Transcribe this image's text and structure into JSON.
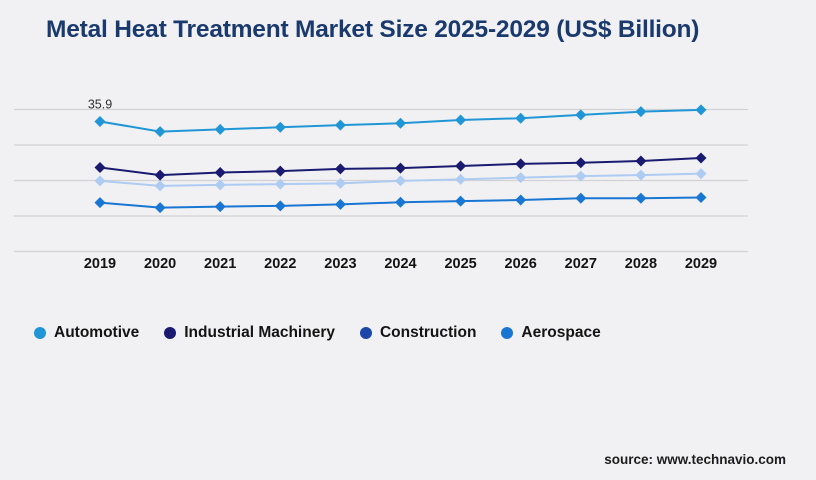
{
  "title": "Metal Heat Treatment Market Size 2025-2029 (US$ Billion)",
  "source": "source: www.technavio.com",
  "colors": {
    "background": "#f1f1f3",
    "title_text": "#1a3a6e",
    "gridline": "#d2d2d6",
    "axis_label_text": "#131313",
    "legend_text": "#141414",
    "annotation_text": "#2e2e2e",
    "source_text": "#1c1c1c"
  },
  "chart_data": {
    "type": "line",
    "title": "Metal Heat Treatment Market Size 2025-2029 (US$ Billion)",
    "categories": [
      "2019",
      "2020",
      "2021",
      "2022",
      "2023",
      "2024",
      "2025",
      "2026",
      "2027",
      "2028",
      "2029"
    ],
    "series": [
      {
        "name": "Automotive",
        "color": "#2196d6",
        "values": [
          35.9,
          33.1,
          33.7,
          34.3,
          34.9,
          35.4,
          36.3,
          36.8,
          37.7,
          38.6,
          39.1
        ]
      },
      {
        "name": "Industrial Machinery",
        "color": "#1a1a70",
        "values": [
          23.2,
          21.1,
          21.8,
          22.2,
          22.8,
          23.0,
          23.6,
          24.2,
          24.5,
          25.0,
          25.8
        ]
      },
      {
        "name": "Construction",
        "color": "#1c46a8",
        "line_color": "#aecbf2",
        "values": [
          19.5,
          18.1,
          18.4,
          18.6,
          18.8,
          19.5,
          19.9,
          20.4,
          20.8,
          21.1,
          21.5
        ]
      },
      {
        "name": "Aerospace",
        "color": "#1976d2",
        "values": [
          13.5,
          12.1,
          12.4,
          12.6,
          13.0,
          13.6,
          13.9,
          14.2,
          14.7,
          14.7,
          14.9
        ]
      }
    ],
    "annotation": {
      "text": "35.9",
      "series": "Automotive",
      "category": "2019"
    },
    "xlabel": "",
    "ylabel": "",
    "ylim": [
      0,
      39.2
    ],
    "gridline_count": 5,
    "y_axis_labels_visible": false,
    "grid": "horizontal",
    "marker": "diamond",
    "legend_position": "bottom"
  }
}
